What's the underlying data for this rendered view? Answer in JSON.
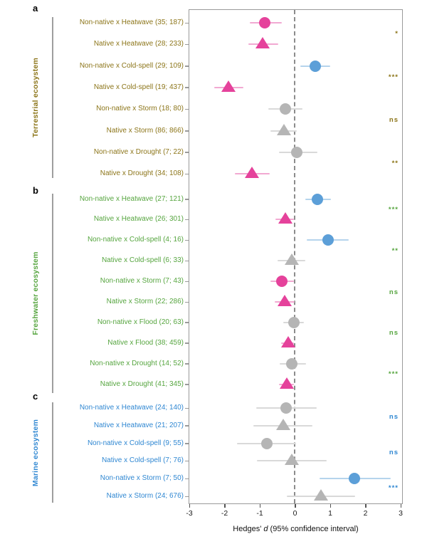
{
  "figure": {
    "x_axis": {
      "title_prefix": "Hedges' ",
      "title_italic": "d",
      "title_suffix": " (95% confidence interval)"
    },
    "colors": {
      "significant_negative": "#e5429b",
      "significant_positive": "#5c9fd8",
      "non_significant": "#b5b5b5",
      "ci_negative": "#f2a9d2",
      "ci_positive": "#b5d4ec",
      "ci_neutral": "#d9d9d9",
      "panel_a": "#8c7519",
      "panel_b": "#56a53f",
      "panel_c": "#2f87d2"
    }
  },
  "chart_data": {
    "type": "scatter",
    "variant": "forest_plot",
    "xlabel": "Hedges' d (95% confidence interval)",
    "xlim": [
      -3,
      3
    ],
    "x_ticks": [
      -3,
      -2,
      -1,
      0,
      1,
      2,
      3
    ],
    "zero_reference": 0,
    "panels": [
      {
        "letter": "a",
        "ecosystem": "Terrestrial ecosystem",
        "color_key": "panel_a",
        "rows": [
          {
            "label": "Non-native x Heatwave (35; 187)",
            "shape": "circle",
            "effect": -0.85,
            "ci": [
              -1.29,
              -0.37
            ],
            "color": "pink"
          },
          {
            "label": "Native x Heatwave (28; 233)",
            "shape": "triangle",
            "effect": -0.91,
            "ci": [
              -1.33,
              -0.47
            ],
            "color": "pink"
          },
          {
            "label": "Non-native x Cold-spell (29; 109)",
            "shape": "circle",
            "effect": 0.57,
            "ci": [
              0.15,
              1.01
            ],
            "color": "blue"
          },
          {
            "label": "Native x Cold-spell (19; 437)",
            "shape": "triangle",
            "effect": -1.89,
            "ci": [
              -2.3,
              -1.47
            ],
            "color": "pink"
          },
          {
            "label": "Non-native x Storm (18; 80)",
            "shape": "circle",
            "effect": -0.28,
            "ci": [
              -0.75,
              0.21
            ],
            "color": "gray"
          },
          {
            "label": "Native x Storm (86; 866)",
            "shape": "triangle",
            "effect": -0.31,
            "ci": [
              -0.7,
              0.05
            ],
            "color": "gray"
          },
          {
            "label": "Non-native x Drought (7; 22)",
            "shape": "circle",
            "effect": 0.05,
            "ci": [
              -0.45,
              0.63
            ],
            "color": "gray"
          },
          {
            "label": "Native x Drought (34; 108)",
            "shape": "triangle",
            "effect": -1.22,
            "ci": [
              -1.7,
              -0.72
            ],
            "color": "pink"
          }
        ],
        "significance": [
          {
            "pair": "Heatwave",
            "label": "*"
          },
          {
            "pair": "Cold-spell",
            "label": "***"
          },
          {
            "pair": "Storm",
            "label": "ns"
          },
          {
            "pair": "Drought",
            "label": "**"
          }
        ]
      },
      {
        "letter": "b",
        "ecosystem": "Freshwater ecosystem",
        "color_key": "panel_b",
        "rows": [
          {
            "label": "Non-native x Heatwave (27; 121)",
            "shape": "circle",
            "effect": 0.63,
            "ci": [
              0.29,
              1.02
            ],
            "color": "blue"
          },
          {
            "label": "Native x Heatwave (26; 301)",
            "shape": "triangle",
            "effect": -0.28,
            "ci": [
              -0.56,
              -0.02
            ],
            "color": "pink"
          },
          {
            "label": "Non-native x Cold-spell (4; 16)",
            "shape": "circle",
            "effect": 0.93,
            "ci": [
              0.33,
              1.52
            ],
            "color": "blue"
          },
          {
            "label": "Native x Cold-spell (6; 33)",
            "shape": "triangle",
            "effect": -0.1,
            "ci": [
              -0.49,
              0.3
            ],
            "color": "gray"
          },
          {
            "label": "Non-native x Storm (7; 43)",
            "shape": "circle",
            "effect": -0.38,
            "ci": [
              -0.7,
              -0.03
            ],
            "color": "pink"
          },
          {
            "label": "Native x Storm (22; 286)",
            "shape": "triangle",
            "effect": -0.29,
            "ci": [
              -0.58,
              -0.02
            ],
            "color": "pink"
          },
          {
            "label": "Non-native x Flood (20; 63)",
            "shape": "circle",
            "effect": -0.04,
            "ci": [
              -0.33,
              0.26
            ],
            "color": "gray"
          },
          {
            "label": "Native x Flood (38; 459)",
            "shape": "triangle",
            "effect": -0.19,
            "ci": [
              -0.4,
              -0.02
            ],
            "color": "pink"
          },
          {
            "label": "Non-native x Drought (14; 52)",
            "shape": "circle",
            "effect": -0.09,
            "ci": [
              -0.43,
              0.32
            ],
            "color": "gray"
          },
          {
            "label": "Native x Drought (41; 345)",
            "shape": "triangle",
            "effect": -0.23,
            "ci": [
              -0.46,
              -0.02
            ],
            "color": "pink"
          }
        ],
        "significance": [
          {
            "pair": "Heatwave",
            "label": "***"
          },
          {
            "pair": "Cold-spell",
            "label": "**"
          },
          {
            "pair": "Storm",
            "label": "ns"
          },
          {
            "pair": "Flood",
            "label": "ns"
          },
          {
            "pair": "Drought",
            "label": "***"
          }
        ]
      },
      {
        "letter": "c",
        "ecosystem": "Marine ecosystem",
        "color_key": "panel_c",
        "rows": [
          {
            "label": "Non-native x Heatwave (24; 140)",
            "shape": "circle",
            "effect": -0.25,
            "ci": [
              -1.1,
              0.61
            ],
            "color": "gray"
          },
          {
            "label": "Native x Heatwave (21; 207)",
            "shape": "triangle",
            "effect": -0.33,
            "ci": [
              -1.19,
              0.49
            ],
            "color": "gray"
          },
          {
            "label": "Non-native x Cold-spell (9; 55)",
            "shape": "circle",
            "effect": -0.8,
            "ci": [
              -1.65,
              0.04
            ],
            "color": "gray"
          },
          {
            "label": "Native x Cold-spell (7; 76)",
            "shape": "triangle",
            "effect": -0.1,
            "ci": [
              -1.09,
              0.9
            ],
            "color": "gray"
          },
          {
            "label": "Non-native x Storm (7; 50)",
            "shape": "circle",
            "effect": 1.68,
            "ci": [
              0.69,
              2.72
            ],
            "color": "blue"
          },
          {
            "label": "Native x Storm (24; 676)",
            "shape": "triangle",
            "effect": 0.73,
            "ci": [
              -0.24,
              1.7
            ],
            "color": "gray"
          }
        ],
        "significance": [
          {
            "pair": "Heatwave",
            "label": "ns"
          },
          {
            "pair": "Cold-spell",
            "label": "ns"
          },
          {
            "pair": "Storm",
            "label": "***"
          }
        ]
      }
    ]
  }
}
